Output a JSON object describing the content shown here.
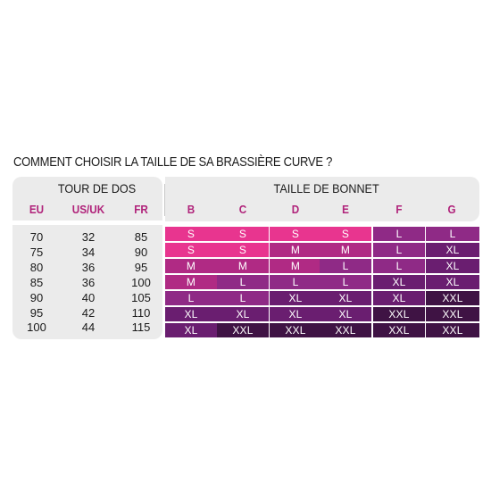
{
  "title": "COMMENT CHOISIR LA TAILLE DE SA BRASSIÈRE CURVE ?",
  "tour_de_dos": {
    "label": "TOUR DE DOS",
    "columns": [
      "EU",
      "US/UK",
      "FR"
    ],
    "rows": [
      [
        "70",
        "32",
        "85"
      ],
      [
        "75",
        "34",
        "90"
      ],
      [
        "80",
        "36",
        "95"
      ],
      [
        "85",
        "36",
        "100"
      ],
      [
        "90",
        "40",
        "105"
      ],
      [
        "95",
        "42",
        "110"
      ],
      [
        "100",
        "44",
        "115"
      ]
    ]
  },
  "taille_de_bonnet": {
    "label": "TAILLE DE BONNET",
    "columns": [
      "B",
      "C",
      "D",
      "E",
      "F",
      "G"
    ],
    "rows": [
      [
        "S",
        "S",
        "S",
        "S",
        "L",
        "L"
      ],
      [
        "S",
        "S",
        "M",
        "M",
        "L",
        "XL"
      ],
      [
        "M",
        "M",
        "M",
        "L",
        "L",
        "XL"
      ],
      [
        "M",
        "L",
        "L",
        "L",
        "XL",
        "XL"
      ],
      [
        "L",
        "L",
        "XL",
        "XL",
        "XL",
        "XXL"
      ],
      [
        "XL",
        "XL",
        "XL",
        "XL",
        "XXL",
        "XXL"
      ],
      [
        "XL",
        "XXL",
        "XXL",
        "XXL",
        "XXL",
        "XXL"
      ]
    ]
  },
  "colors": {
    "S": "#e8358f",
    "M": "#b02a84",
    "L": "#8f2a86",
    "XL": "#6a1e70",
    "XXL": "#3f1344",
    "header_accent": "#b0227a"
  }
}
